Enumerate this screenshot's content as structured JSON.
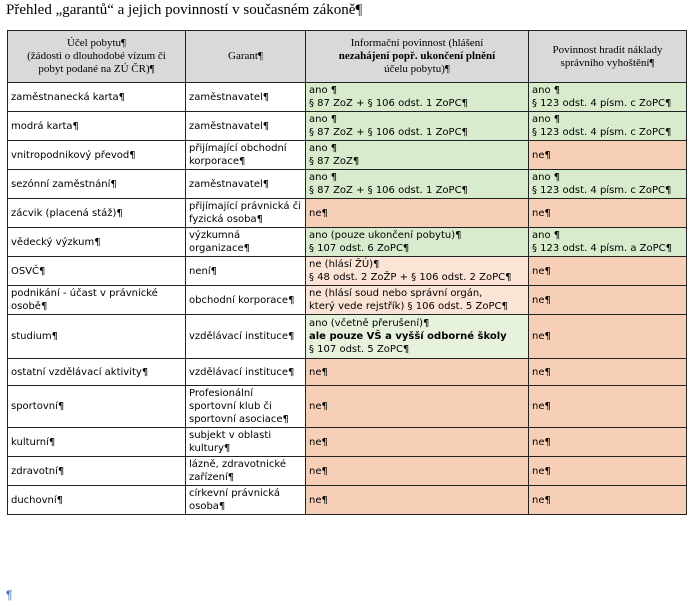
{
  "title": "Přehled „garantů“ a jejich povinností v současném zákoně¶",
  "headers": {
    "col1": [
      "Účel pobytu¶",
      "(žádosti o dlouhodobé vízum či",
      "pobyt podané na ZÚ ČR)¶"
    ],
    "col2": "Garant¶",
    "col3": [
      "Informační povinnost (hlášení",
      "nezahájení popř. ukončení plnění",
      "účelu pobytu)¶"
    ],
    "col4": [
      "Povinnost hradit náklady",
      "správního vyhoštění¶"
    ]
  },
  "rows": [
    {
      "purpose": "zaměstnanecká karta¶",
      "guarantor": "zaměstnavatel¶",
      "info": [
        "ano ¶",
        "§ 87 ZoZ + § 106 odst. 1 ZoPC¶"
      ],
      "info_color": "green",
      "cost": [
        "ano ¶",
        "§ 123 odst. 4 písm. c ZoPC¶"
      ],
      "cost_color": "green"
    },
    {
      "purpose": "modrá karta¶",
      "guarantor": "zaměstnavatel¶",
      "info": [
        "ano ¶",
        "§ 87 ZoZ + § 106 odst. 1 ZoPC¶"
      ],
      "info_color": "green",
      "cost": [
        "ano ¶",
        "§ 123 odst. 4 písm. c ZoPC¶"
      ],
      "cost_color": "green"
    },
    {
      "purpose": "vnitropodnikový převod¶",
      "guarantor": "přijímající obchodní korporace¶",
      "info": [
        "ano ¶",
        "§ 87 ZoZ¶"
      ],
      "info_color": "green",
      "cost": [
        "ne¶"
      ],
      "cost_color": "red"
    },
    {
      "purpose": "sezónní zaměstnání¶",
      "guarantor": "zaměstnavatel¶",
      "info": [
        "ano ¶",
        "§ 87 ZoZ + § 106 odst. 1 ZoPC¶"
      ],
      "info_color": "green",
      "cost": [
        "ano ¶",
        "§ 123 odst. 4 písm. c ZoPC¶"
      ],
      "cost_color": "green"
    },
    {
      "purpose": "zácvik (placená stáž)¶",
      "guarantor": "přijímající právnická či fyzická osoba¶",
      "info": [
        "ne¶"
      ],
      "info_color": "red",
      "cost": [
        "ne¶"
      ],
      "cost_color": "red"
    },
    {
      "purpose": "vědecký výzkum¶",
      "guarantor": "výzkumná organizace¶",
      "info": [
        "ano (pouze ukončení pobytu)¶",
        "§ 107 odst. 6 ZoPC¶"
      ],
      "info_color": "green",
      "cost": [
        "ano ¶",
        "§ 123 odst. 4 písm. a ZoPC¶"
      ],
      "cost_color": "green"
    },
    {
      "purpose": "OSVČ¶",
      "guarantor": "není¶",
      "info": [
        "ne (hlásí ŽÚ)¶",
        "§ 48 odst. 2 ZoŽP + § 106 odst. 2 ZoPC¶"
      ],
      "info_color": "lightred",
      "cost": [
        "ne¶"
      ],
      "cost_color": "red"
    },
    {
      "purpose": "podnikání - účast v právnické osobě¶",
      "guarantor": "obchodní korporace¶",
      "info": [
        "ne (hlásí soud nebo správní orgán,",
        "který vede rejstřík) § 106 odst. 5 ZoPC¶"
      ],
      "info_color": "lightred",
      "cost": [
        "ne¶"
      ],
      "cost_color": "red"
    },
    {
      "purpose": "studium¶",
      "guarantor": "vzdělávací instituce¶",
      "info": [
        "ano (včetně přerušení)¶",
        "ale pouze VŠ a vyšší odborné školy",
        "§ 107 odst. 5 ZoPC¶"
      ],
      "info_color": "lightgreen",
      "cost": [
        "ne¶"
      ],
      "cost_color": "red"
    },
    {
      "purpose": "ostatní vzdělávací aktivity¶",
      "guarantor": "vzdělávací instituce¶",
      "info": [
        "ne¶"
      ],
      "info_color": "red",
      "cost": [
        "ne¶"
      ],
      "cost_color": "red"
    },
    {
      "purpose": "sportovní¶",
      "guarantor": "Profesionální sportovní klub či sportovní asociace¶",
      "info": [
        "ne¶"
      ],
      "info_color": "red",
      "cost": [
        "ne¶"
      ],
      "cost_color": "red"
    },
    {
      "purpose": "kulturní¶",
      "guarantor": "subjekt v oblasti kultury¶",
      "info": [
        "ne¶"
      ],
      "info_color": "red",
      "cost": [
        "ne¶"
      ],
      "cost_color": "red"
    },
    {
      "purpose": "zdravotní¶",
      "guarantor": "lázně, zdravotnické zařízení¶",
      "info": [
        "ne¶"
      ],
      "info_color": "red",
      "cost": [
        "ne¶"
      ],
      "cost_color": "red"
    },
    {
      "purpose": "duchovní¶",
      "guarantor": "církevní právnická osoba¶",
      "info": [
        "ne¶"
      ],
      "info_color": "red",
      "cost": [
        "ne¶"
      ],
      "cost_color": "red"
    }
  ],
  "bold_info_line": "ale pouze VŠ a vyšší odborné školy",
  "end_mark": "¶"
}
